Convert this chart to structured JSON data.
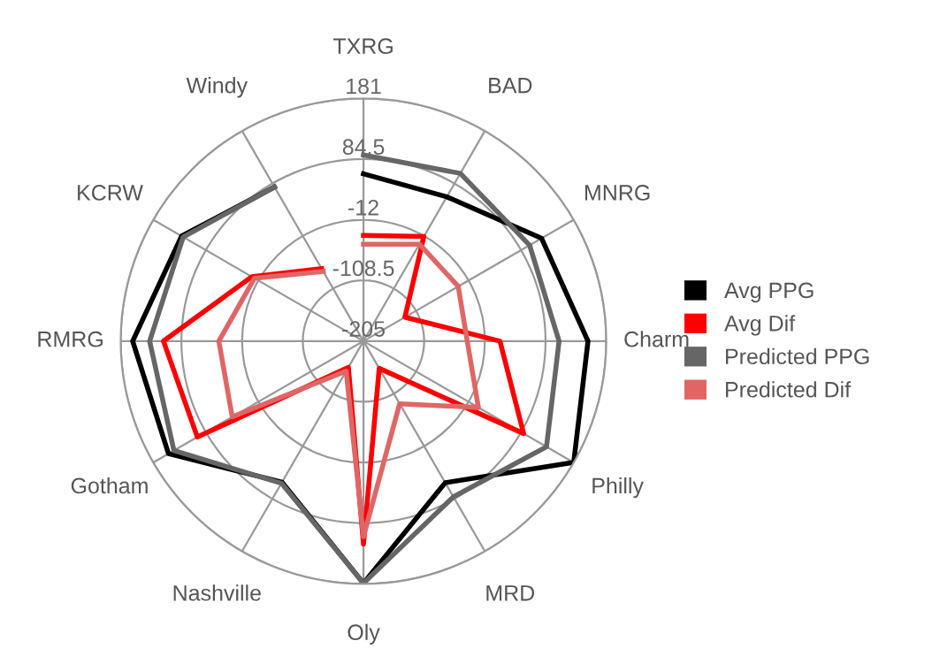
{
  "chart_data": {
    "type": "radar",
    "categories": [
      "TXRG",
      "BAD",
      "MNRG",
      "Charm",
      "Philly",
      "MRD",
      "Oly",
      "Nashville",
      "Gotham",
      "RMRG",
      "KCRW",
      "Windy"
    ],
    "ylim": [
      -205,
      181
    ],
    "yticks": [
      -205,
      -108.5,
      -12,
      84.5,
      181
    ],
    "grid": true,
    "legend": "right",
    "marker": "none",
    "line_style": "solid",
    "series": [
      {
        "name": "Avg PPG",
        "color": "#000000",
        "values": [
          61,
          60,
          122,
          152,
          181,
          55,
          180,
          54,
          153,
          162,
          129,
          78
        ]
      },
      {
        "name": "Avg Dif",
        "color": "#ff0000",
        "values": [
          -37,
          -13,
          -129,
          12,
          89,
          -155,
          118,
          -157,
          100,
          113,
          0,
          -72
        ]
      },
      {
        "name": "Predicted PPG",
        "color": "#666666",
        "values": [
          91,
          103,
          100,
          106,
          131,
          81,
          180,
          56,
          143,
          135,
          126,
          78
        ]
      },
      {
        "name": "Predicted Dif",
        "color": "#e06666",
        "values": [
          -51,
          -27,
          -31,
          -40,
          6,
          -90,
          106,
          -150,
          36,
          25,
          -5,
          -77
        ]
      }
    ]
  }
}
